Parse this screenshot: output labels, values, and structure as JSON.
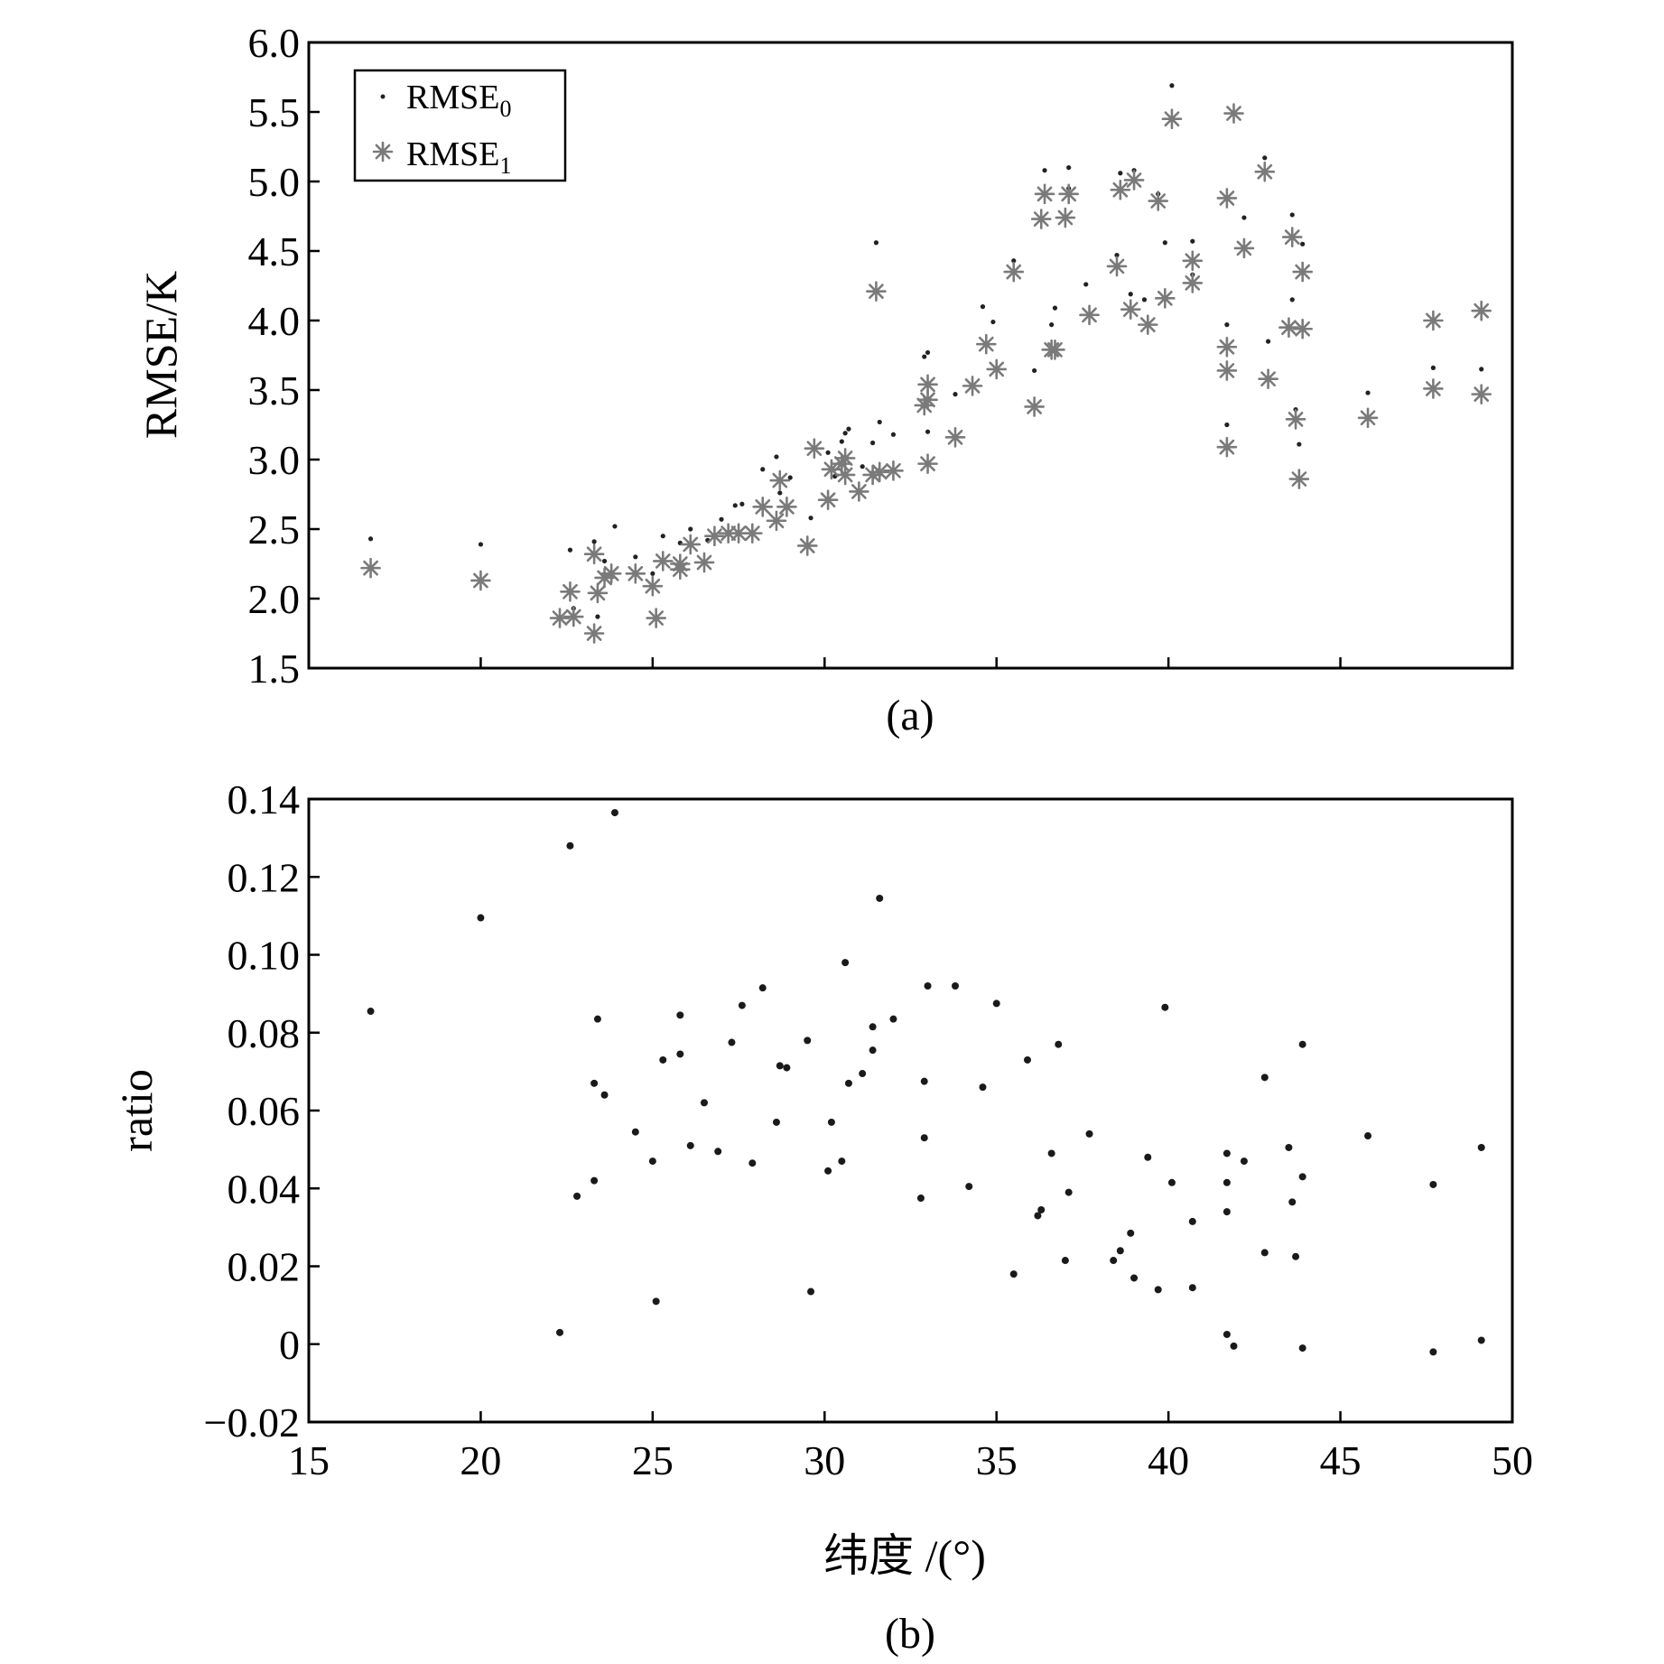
{
  "chart_data": [
    {
      "type": "scatter",
      "panel_label": "(a)",
      "ylabel": "RMSE/K",
      "xlim": [
        15,
        50
      ],
      "ylim": [
        1.5,
        6.0
      ],
      "x_ticks": [
        15,
        20,
        25,
        30,
        35,
        40,
        45,
        50
      ],
      "y_ticks": [
        "1.5",
        "2.0",
        "2.5",
        "3.0",
        "3.5",
        "4.0",
        "4.5",
        "5.0",
        "5.5",
        "6.0"
      ],
      "legend_position": "top-left",
      "series": [
        {
          "name": "RMSE0",
          "marker": "dot",
          "color": "#222222",
          "points": [
            [
              16.8,
              2.43
            ],
            [
              20.0,
              2.39
            ],
            [
              22.6,
              2.35
            ],
            [
              22.7,
              1.93
            ],
            [
              23.3,
              2.41
            ],
            [
              23.4,
              1.87
            ],
            [
              23.6,
              2.27
            ],
            [
              23.9,
              2.52
            ],
            [
              24.5,
              2.3
            ],
            [
              25.0,
              2.18
            ],
            [
              25.3,
              2.45
            ],
            [
              25.8,
              2.4
            ],
            [
              26.1,
              2.5
            ],
            [
              26.6,
              2.42
            ],
            [
              27.0,
              2.57
            ],
            [
              27.4,
              2.67
            ],
            [
              27.6,
              2.68
            ],
            [
              28.2,
              2.93
            ],
            [
              28.6,
              3.02
            ],
            [
              28.7,
              2.76
            ],
            [
              29.0,
              2.87
            ],
            [
              29.6,
              2.58
            ],
            [
              30.1,
              3.05
            ],
            [
              30.3,
              2.88
            ],
            [
              30.5,
              3.13
            ],
            [
              30.6,
              3.19
            ],
            [
              30.7,
              3.22
            ],
            [
              31.1,
              2.95
            ],
            [
              31.4,
              3.12
            ],
            [
              31.5,
              4.56
            ],
            [
              31.6,
              3.27
            ],
            [
              32.0,
              3.18
            ],
            [
              32.9,
              3.74
            ],
            [
              33.0,
              3.77
            ],
            [
              33.0,
              3.2
            ],
            [
              33.8,
              3.47
            ],
            [
              34.6,
              4.1
            ],
            [
              34.9,
              3.99
            ],
            [
              35.5,
              4.43
            ],
            [
              36.1,
              3.64
            ],
            [
              36.4,
              5.08
            ],
            [
              36.6,
              3.97
            ],
            [
              36.7,
              4.09
            ],
            [
              37.1,
              5.1
            ],
            [
              37.1,
              4.95
            ],
            [
              37.6,
              4.26
            ],
            [
              38.5,
              4.47
            ],
            [
              38.6,
              5.06
            ],
            [
              38.9,
              4.19
            ],
            [
              39.0,
              5.08
            ],
            [
              39.3,
              4.15
            ],
            [
              39.7,
              4.91
            ],
            [
              39.9,
              4.56
            ],
            [
              40.1,
              5.69
            ],
            [
              40.7,
              4.57
            ],
            [
              40.7,
              4.33
            ],
            [
              41.7,
              3.97
            ],
            [
              41.7,
              3.81
            ],
            [
              41.7,
              3.25
            ],
            [
              42.2,
              4.74
            ],
            [
              42.8,
              5.17
            ],
            [
              42.9,
              3.85
            ],
            [
              43.6,
              4.76
            ],
            [
              43.6,
              4.15
            ],
            [
              43.7,
              3.36
            ],
            [
              43.8,
              3.11
            ],
            [
              43.9,
              4.55
            ],
            [
              45.8,
              3.48
            ],
            [
              47.7,
              3.66
            ],
            [
              49.1,
              3.65
            ]
          ]
        },
        {
          "name": "RMSE1",
          "marker": "asterisk",
          "color": "#7a7a7a",
          "points": [
            [
              16.8,
              2.22
            ],
            [
              20.0,
              2.13
            ],
            [
              22.3,
              1.86
            ],
            [
              22.6,
              2.05
            ],
            [
              22.7,
              1.87
            ],
            [
              23.3,
              1.75
            ],
            [
              23.3,
              2.32
            ],
            [
              23.4,
              2.04
            ],
            [
              23.6,
              2.15
            ],
            [
              23.8,
              2.18
            ],
            [
              24.5,
              2.18
            ],
            [
              25.0,
              2.09
            ],
            [
              25.1,
              1.86
            ],
            [
              25.3,
              2.27
            ],
            [
              25.8,
              2.21
            ],
            [
              25.8,
              2.25
            ],
            [
              26.1,
              2.39
            ],
            [
              26.5,
              2.26
            ],
            [
              26.8,
              2.45
            ],
            [
              27.2,
              2.47
            ],
            [
              27.5,
              2.47
            ],
            [
              27.9,
              2.47
            ],
            [
              28.2,
              2.66
            ],
            [
              28.6,
              2.56
            ],
            [
              28.7,
              2.85
            ],
            [
              28.9,
              2.66
            ],
            [
              29.5,
              2.38
            ],
            [
              29.7,
              3.08
            ],
            [
              30.1,
              2.71
            ],
            [
              30.2,
              2.93
            ],
            [
              30.5,
              2.97
            ],
            [
              30.6,
              2.89
            ],
            [
              30.6,
              3.01
            ],
            [
              31.0,
              2.77
            ],
            [
              31.4,
              2.89
            ],
            [
              31.5,
              4.21
            ],
            [
              31.6,
              2.91
            ],
            [
              32.0,
              2.92
            ],
            [
              32.9,
              3.39
            ],
            [
              33.0,
              3.43
            ],
            [
              33.0,
              3.54
            ],
            [
              33.0,
              2.97
            ],
            [
              33.8,
              3.16
            ],
            [
              34.3,
              3.53
            ],
            [
              34.7,
              3.83
            ],
            [
              35.0,
              3.65
            ],
            [
              35.5,
              4.35
            ],
            [
              36.1,
              3.38
            ],
            [
              36.3,
              4.73
            ],
            [
              36.4,
              4.91
            ],
            [
              36.6,
              3.79
            ],
            [
              36.7,
              3.79
            ],
            [
              37.0,
              4.74
            ],
            [
              37.1,
              4.91
            ],
            [
              37.7,
              4.04
            ],
            [
              38.5,
              4.39
            ],
            [
              38.6,
              4.94
            ],
            [
              38.9,
              4.08
            ],
            [
              39.0,
              5.01
            ],
            [
              39.4,
              3.97
            ],
            [
              39.7,
              4.86
            ],
            [
              39.9,
              4.16
            ],
            [
              40.1,
              5.45
            ],
            [
              40.7,
              4.27
            ],
            [
              40.7,
              4.43
            ],
            [
              41.7,
              3.81
            ],
            [
              41.7,
              3.64
            ],
            [
              41.7,
              3.09
            ],
            [
              41.7,
              4.88
            ],
            [
              41.9,
              5.49
            ],
            [
              42.2,
              4.52
            ],
            [
              42.8,
              5.07
            ],
            [
              42.9,
              3.58
            ],
            [
              43.5,
              3.95
            ],
            [
              43.6,
              4.6
            ],
            [
              43.7,
              3.29
            ],
            [
              43.8,
              2.86
            ],
            [
              43.9,
              4.35
            ],
            [
              43.9,
              3.94
            ],
            [
              45.8,
              3.3
            ],
            [
              47.7,
              4.0
            ],
            [
              47.7,
              3.51
            ],
            [
              49.1,
              3.47
            ],
            [
              49.1,
              4.07
            ]
          ]
        }
      ]
    },
    {
      "type": "scatter",
      "panel_label": "(b)",
      "ylabel": "ratio",
      "xlabel": "纬度 /(°)",
      "xlim": [
        15,
        50
      ],
      "ylim": [
        -0.02,
        0.14
      ],
      "x_ticks": [
        "15",
        "20",
        "25",
        "30",
        "35",
        "40",
        "45",
        "50"
      ],
      "y_ticks": [
        "−0.02",
        "0",
        "0.02",
        "0.04",
        "0.06",
        "0.08",
        "0.10",
        "0.12",
        "0.14"
      ],
      "series": [
        {
          "marker": "dot",
          "color": "#1a1a1a",
          "points": [
            [
              16.8,
              0.0855
            ],
            [
              20.0,
              0.1095
            ],
            [
              22.3,
              0.003
            ],
            [
              22.6,
              0.128
            ],
            [
              22.8,
              0.038
            ],
            [
              23.3,
              0.042
            ],
            [
              23.3,
              0.067
            ],
            [
              23.4,
              0.0835
            ],
            [
              23.6,
              0.064
            ],
            [
              23.9,
              0.1365
            ],
            [
              24.5,
              0.0545
            ],
            [
              25.0,
              0.047
            ],
            [
              25.1,
              0.011
            ],
            [
              25.3,
              0.073
            ],
            [
              25.8,
              0.0845
            ],
            [
              25.8,
              0.0745
            ],
            [
              26.1,
              0.051
            ],
            [
              26.5,
              0.062
            ],
            [
              26.9,
              0.0495
            ],
            [
              27.3,
              0.0775
            ],
            [
              27.6,
              0.087
            ],
            [
              27.9,
              0.0465
            ],
            [
              28.2,
              0.0915
            ],
            [
              28.6,
              0.057
            ],
            [
              28.7,
              0.0715
            ],
            [
              28.9,
              0.071
            ],
            [
              29.5,
              0.078
            ],
            [
              29.6,
              0.0135
            ],
            [
              30.1,
              0.0445
            ],
            [
              30.2,
              0.057
            ],
            [
              30.5,
              0.047
            ],
            [
              30.6,
              0.098
            ],
            [
              30.7,
              0.067
            ],
            [
              31.1,
              0.0695
            ],
            [
              31.4,
              0.0815
            ],
            [
              31.4,
              0.0755
            ],
            [
              31.6,
              0.1145
            ],
            [
              32.0,
              0.0835
            ],
            [
              32.8,
              0.0375
            ],
            [
              32.9,
              0.053
            ],
            [
              32.9,
              0.0675
            ],
            [
              33.0,
              0.092
            ],
            [
              33.8,
              0.092
            ],
            [
              34.2,
              0.0405
            ],
            [
              34.6,
              0.066
            ],
            [
              35.0,
              0.0875
            ],
            [
              35.5,
              0.018
            ],
            [
              35.9,
              0.073
            ],
            [
              36.2,
              0.033
            ],
            [
              36.3,
              0.0345
            ],
            [
              36.6,
              0.049
            ],
            [
              36.8,
              0.077
            ],
            [
              37.1,
              0.039
            ],
            [
              37.0,
              0.0215
            ],
            [
              37.7,
              0.054
            ],
            [
              38.4,
              0.0215
            ],
            [
              38.6,
              0.024
            ],
            [
              38.9,
              0.0285
            ],
            [
              39.0,
              0.017
            ],
            [
              39.4,
              0.048
            ],
            [
              39.7,
              0.014
            ],
            [
              39.9,
              0.0865
            ],
            [
              40.1,
              0.0415
            ],
            [
              40.7,
              0.0315
            ],
            [
              40.7,
              0.0145
            ],
            [
              41.7,
              0.049
            ],
            [
              41.7,
              0.0415
            ],
            [
              41.7,
              0.034
            ],
            [
              41.7,
              0.0025
            ],
            [
              41.9,
              -0.0005
            ],
            [
              42.2,
              0.047
            ],
            [
              42.8,
              0.0685
            ],
            [
              42.8,
              0.0235
            ],
            [
              43.5,
              0.0505
            ],
            [
              43.6,
              0.0365
            ],
            [
              43.7,
              0.0225
            ],
            [
              43.9,
              0.077
            ],
            [
              43.9,
              0.043
            ],
            [
              43.9,
              -0.001
            ],
            [
              45.8,
              0.0535
            ],
            [
              47.7,
              0.041
            ],
            [
              47.7,
              -0.002
            ],
            [
              49.1,
              0.0505
            ],
            [
              49.1,
              0.001
            ]
          ]
        }
      ]
    }
  ]
}
